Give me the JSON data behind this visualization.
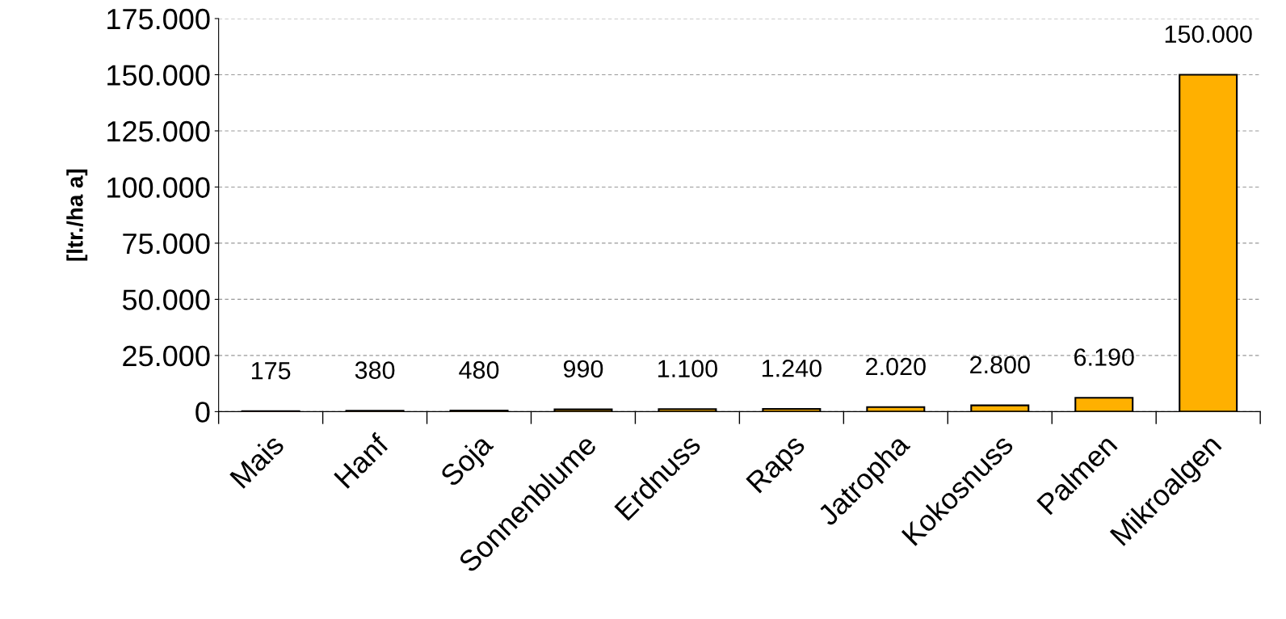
{
  "chart_data": {
    "type": "bar",
    "ylabel": "[ltr./ha a]",
    "categories": [
      "Mais",
      "Hanf",
      "Soja",
      "Sonnenblume",
      "Erdnuss",
      "Raps",
      "Jatropha",
      "Kokosnuss",
      "Palmen",
      "Mikroalgen"
    ],
    "values": [
      175,
      380,
      480,
      990,
      1100,
      1240,
      2020,
      2800,
      6190,
      150000
    ],
    "value_labels": [
      "175",
      "380",
      "480",
      "990",
      "1.100",
      "1.240",
      "2.020",
      "2.800",
      "6.190",
      "150.000"
    ],
    "color": "#ffb000",
    "ylim": [
      0,
      175000
    ],
    "yticks": [
      {
        "value": 0,
        "label": "0"
      },
      {
        "value": 25000,
        "label": "25.000"
      },
      {
        "value": 50000,
        "label": "50.000"
      },
      {
        "value": 75000,
        "label": "75.000"
      },
      {
        "value": 100000,
        "label": "100.000"
      },
      {
        "value": 125000,
        "label": "125.000"
      },
      {
        "value": 150000,
        "label": "150.000"
      },
      {
        "value": 175000,
        "label": "175.000"
      }
    ],
    "grid": "y"
  }
}
